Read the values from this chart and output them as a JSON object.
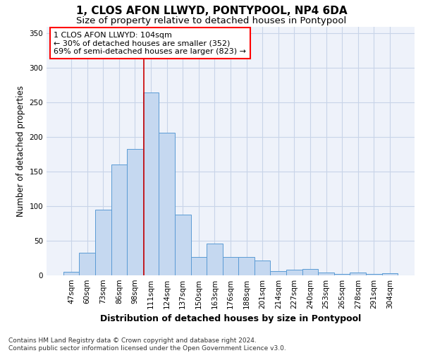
{
  "title": "1, CLOS AFON LLWYD, PONTYPOOL, NP4 6DA",
  "subtitle": "Size of property relative to detached houses in Pontypool",
  "xlabel": "Distribution of detached houses by size in Pontypool",
  "ylabel": "Number of detached properties",
  "categories": [
    "47sqm",
    "60sqm",
    "73sqm",
    "86sqm",
    "98sqm",
    "111sqm",
    "124sqm",
    "137sqm",
    "150sqm",
    "163sqm",
    "176sqm",
    "188sqm",
    "201sqm",
    "214sqm",
    "227sqm",
    "240sqm",
    "253sqm",
    "265sqm",
    "278sqm",
    "291sqm",
    "304sqm"
  ],
  "values": [
    5,
    33,
    95,
    160,
    183,
    265,
    206,
    88,
    27,
    46,
    27,
    27,
    21,
    6,
    8,
    9,
    4,
    2,
    4,
    2,
    3
  ],
  "bar_color": "#c5d8f0",
  "bar_edge_color": "#5b9bd5",
  "vline_color": "#cc0000",
  "grid_color": "#c8d4e8",
  "background_color": "#eef2fa",
  "annotation_text_lines": [
    "1 CLOS AFON LLWYD: 104sqm",
    "← 30% of detached houses are smaller (352)",
    "69% of semi-detached houses are larger (823) →"
  ],
  "vline_x_index": 4.55,
  "title_fontsize": 11,
  "subtitle_fontsize": 9.5,
  "xlabel_fontsize": 9,
  "ylabel_fontsize": 8.5,
  "tick_fontsize": 7.5,
  "annotation_fontsize": 8,
  "footer_fontsize": 6.5,
  "footer_line1": "Contains HM Land Registry data © Crown copyright and database right 2024.",
  "footer_line2": "Contains public sector information licensed under the Open Government Licence v3.0.",
  "ylim": [
    0,
    360
  ]
}
